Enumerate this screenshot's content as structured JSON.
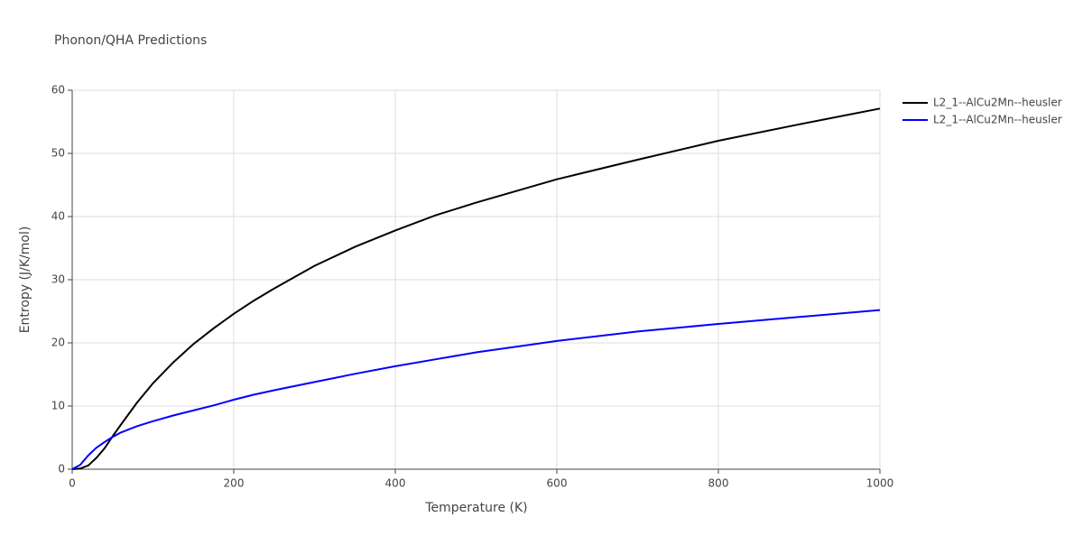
{
  "chart_data": {
    "type": "line",
    "title": "Phonon/QHA Predictions",
    "x_label": "Temperature (K)",
    "y_label": "Entropy (J/K/mol)",
    "x": [
      0,
      10,
      20,
      30,
      40,
      50,
      60,
      80,
      100,
      125,
      150,
      175,
      200,
      225,
      250,
      300,
      350,
      400,
      450,
      500,
      600,
      700,
      800,
      900,
      1000
    ],
    "series": [
      {
        "name": "L2_1--AlCu2Mn--heusler",
        "color": "#000000",
        "values": [
          0,
          0.1,
          0.6,
          1.8,
          3.3,
          5.2,
          7.0,
          10.5,
          13.6,
          16.9,
          19.8,
          22.3,
          24.6,
          26.7,
          28.6,
          32.2,
          35.2,
          37.8,
          40.2,
          42.2,
          45.9,
          49.0,
          52.0,
          54.6,
          57.1
        ]
      },
      {
        "name": "L2_1--AlCu2Mn--heusler",
        "color": "#0000ff",
        "values": [
          0,
          0.7,
          2.2,
          3.4,
          4.3,
          5.1,
          5.8,
          6.8,
          7.6,
          8.5,
          9.3,
          10.1,
          11.0,
          11.8,
          12.5,
          13.8,
          15.1,
          16.3,
          17.4,
          18.5,
          20.3,
          21.8,
          23.0,
          24.1,
          25.2
        ]
      }
    ],
    "xlim": [
      0,
      1000
    ],
    "xticks": [
      0,
      200,
      400,
      600,
      800,
      1000
    ],
    "ylim": [
      0,
      60
    ],
    "yticks": [
      0,
      10,
      20,
      30,
      40,
      50,
      60
    ],
    "grid": true,
    "legend": "right"
  }
}
